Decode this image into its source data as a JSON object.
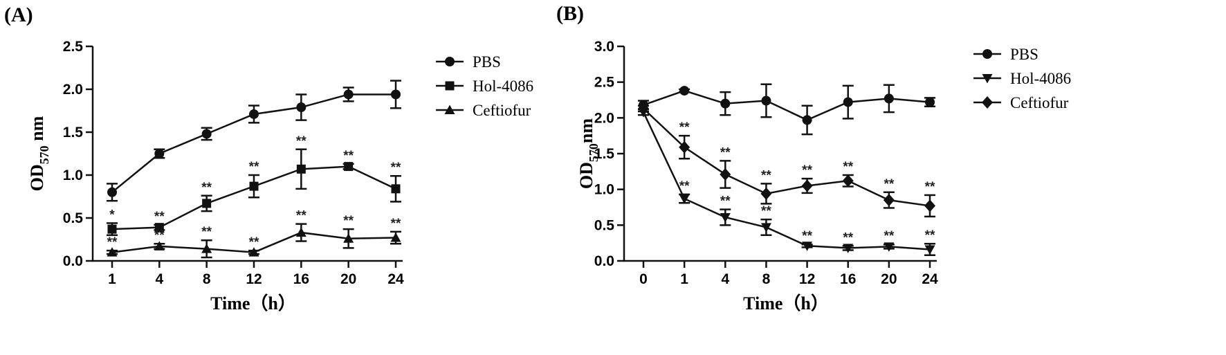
{
  "chart_data": [
    {
      "panel": "(A)",
      "type": "line",
      "xlabel": "Time（h）",
      "ylabel": "OD",
      "ylabel_sub": "570",
      "ylabel_suffix": " nm",
      "categories": [
        "1",
        "4",
        "8",
        "12",
        "16",
        "20",
        "24"
      ],
      "ylim": [
        0,
        2.5
      ],
      "yticks": [
        "0.0",
        "0.5",
        "1.0",
        "1.5",
        "2.0",
        "2.5"
      ],
      "legend_position": "right",
      "series": [
        {
          "name": "PBS",
          "marker": "circle",
          "values": [
            0.8,
            1.25,
            1.48,
            1.71,
            1.79,
            1.94,
            1.94
          ],
          "errors": [
            0.1,
            0.05,
            0.07,
            0.1,
            0.15,
            0.08,
            0.16
          ],
          "stars": [
            "",
            "",
            "",
            "",
            "",
            "",
            ""
          ]
        },
        {
          "name": "Hol-4086",
          "marker": "square",
          "values": [
            0.37,
            0.39,
            0.67,
            0.87,
            1.07,
            1.1,
            0.84
          ],
          "errors": [
            0.07,
            0.03,
            0.09,
            0.13,
            0.23,
            0.03,
            0.15
          ],
          "stars": [
            "*",
            "**",
            "**",
            "**",
            "**",
            "**",
            "**"
          ]
        },
        {
          "name": "Ceftiofur",
          "marker": "triangle-up",
          "values": [
            0.1,
            0.17,
            0.14,
            0.1,
            0.33,
            0.26,
            0.27
          ],
          "errors": [
            0.02,
            0.03,
            0.1,
            0.02,
            0.1,
            0.11,
            0.07
          ],
          "stars": [
            "**",
            "**",
            "**",
            "**",
            "**",
            "**",
            "**"
          ]
        }
      ]
    },
    {
      "panel": "(B)",
      "type": "line",
      "xlabel": "Time（h）",
      "ylabel": "OD",
      "ylabel_sub": "570",
      "ylabel_suffix": "nm",
      "categories": [
        "0",
        "1",
        "4",
        "8",
        "12",
        "16",
        "20",
        "24"
      ],
      "ylim": [
        0,
        3.0
      ],
      "yticks": [
        "0.0",
        "0.5",
        "1.0",
        "1.5",
        "2.0",
        "2.5",
        "3.0"
      ],
      "legend_position": "right",
      "series": [
        {
          "name": "PBS",
          "marker": "circle",
          "values": [
            2.18,
            2.38,
            2.2,
            2.24,
            1.97,
            2.22,
            2.27,
            2.22
          ],
          "errors": [
            0.06,
            0.02,
            0.16,
            0.23,
            0.2,
            0.23,
            0.19,
            0.06
          ],
          "stars": [
            "",
            "",
            "",
            "",
            "",
            "",
            "",
            ""
          ]
        },
        {
          "name": "Hol-4086",
          "marker": "triangle-down",
          "values": [
            2.08,
            0.87,
            0.61,
            0.47,
            0.21,
            0.18,
            0.2,
            0.16
          ],
          "errors": [
            0.04,
            0.06,
            0.11,
            0.11,
            0.02,
            0.03,
            0.03,
            0.08
          ],
          "stars": [
            "",
            "**",
            "**",
            "**",
            "**",
            "**",
            "**",
            "**"
          ]
        },
        {
          "name": "Ceftiofur",
          "marker": "diamond",
          "values": [
            2.13,
            1.59,
            1.21,
            0.94,
            1.05,
            1.12,
            0.85,
            0.77
          ],
          "errors": [
            0.04,
            0.16,
            0.19,
            0.14,
            0.1,
            0.08,
            0.11,
            0.15
          ],
          "stars": [
            "",
            "**",
            "**",
            "**",
            "**",
            "**",
            "**",
            "**"
          ]
        }
      ]
    }
  ]
}
